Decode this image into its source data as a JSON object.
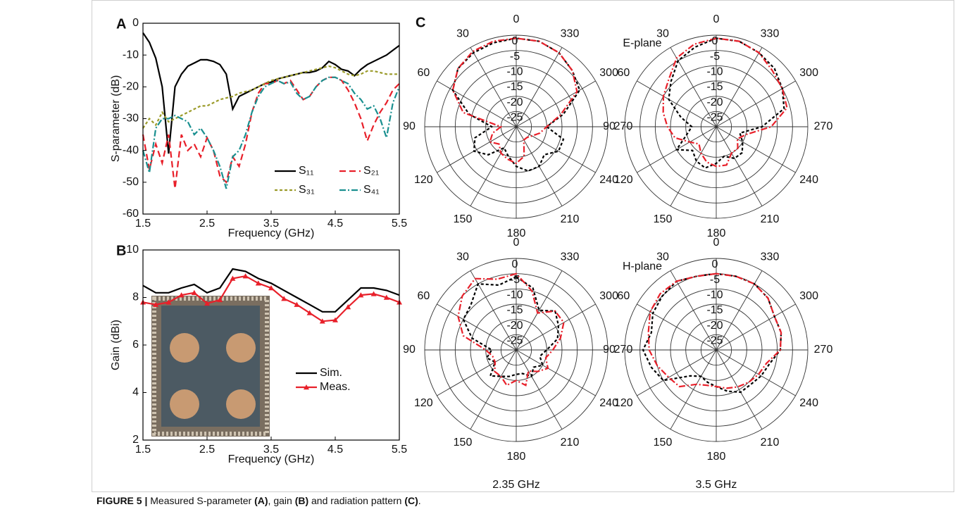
{
  "chart_data": [
    {
      "type": "line",
      "panel": "A",
      "xlabel": "Frequency (GHz)",
      "ylabel": "S-parameter (dB)",
      "xlim": [
        1.5,
        5.5
      ],
      "xticks": [
        1.5,
        2.5,
        3.5,
        4.5,
        5.5
      ],
      "ylim": [
        -60,
        0
      ],
      "yticks": [
        -60,
        -50,
        -40,
        -30,
        -20,
        -10,
        0
      ],
      "legend": "lower right",
      "legend_columns": 2,
      "x": [
        1.5,
        1.6,
        1.7,
        1.8,
        1.9,
        2.0,
        2.1,
        2.2,
        2.3,
        2.4,
        2.5,
        2.6,
        2.7,
        2.8,
        2.9,
        3.0,
        3.1,
        3.2,
        3.3,
        3.4,
        3.5,
        3.6,
        3.7,
        3.8,
        3.9,
        4.0,
        4.1,
        4.2,
        4.3,
        4.4,
        4.5,
        4.6,
        4.7,
        4.8,
        4.9,
        5.0,
        5.1,
        5.2,
        5.3,
        5.4,
        5.5
      ],
      "series": [
        {
          "name": "S₁₁",
          "color": "#000000",
          "linestyle": "solid",
          "values": [
            -3,
            -6,
            -11,
            -20,
            -41,
            -20,
            -16,
            -13.5,
            -12.5,
            -11.5,
            -11.5,
            -12,
            -13,
            -16,
            -27,
            -23,
            -22,
            -21,
            -20,
            -19,
            -18.5,
            -17.5,
            -17,
            -16.5,
            -16,
            -15.5,
            -15.5,
            -15,
            -14,
            -12,
            -13,
            -14.5,
            -15,
            -16.5,
            -14.5,
            -13,
            -12,
            -11,
            -10,
            -8.5,
            -7
          ]
        },
        {
          "name": "S₂₁",
          "color": "#e8202a",
          "linestyle": "dashed",
          "values": [
            -35,
            -46,
            -38,
            -44,
            -35,
            -52,
            -35,
            -40,
            -38,
            -42,
            -36,
            -40,
            -48,
            -50,
            -42,
            -45,
            -38,
            -28,
            -22,
            -19,
            -19,
            -18,
            -19,
            -18,
            -21,
            -24,
            -23,
            -20,
            -18,
            -17,
            -17,
            -18,
            -21,
            -25,
            -30,
            -37,
            -32,
            -28,
            -25,
            -21,
            -19
          ]
        },
        {
          "name": "S₃₁",
          "color": "#9b9b2a",
          "linestyle": "dotted",
          "values": [
            -33,
            -30,
            -32,
            -28,
            -31,
            -30,
            -29,
            -28,
            -27,
            -26,
            -26,
            -25,
            -24,
            -23.5,
            -23,
            -22,
            -21.5,
            -21,
            -20,
            -19,
            -18,
            -17.5,
            -17,
            -16.5,
            -16,
            -15.5,
            -15,
            -14.5,
            -14,
            -13.5,
            -14,
            -15,
            -16,
            -16.5,
            -16,
            -15,
            -15,
            -15.5,
            -16,
            -16,
            -16
          ]
        },
        {
          "name": "S₄₁",
          "color": "#1a9090",
          "linestyle": "dashdot",
          "values": [
            -40,
            -47,
            -33,
            -30,
            -30,
            -29,
            -30,
            -31,
            -35,
            -33,
            -36,
            -40,
            -45,
            -52,
            -42,
            -40,
            -35,
            -28,
            -23,
            -20,
            -19,
            -18,
            -19,
            -18.5,
            -22,
            -24,
            -23,
            -20,
            -18,
            -17,
            -17,
            -18,
            -19,
            -22,
            -24,
            -27,
            -26,
            -30,
            -36,
            -25,
            -20
          ]
        }
      ]
    },
    {
      "type": "line",
      "panel": "B",
      "xlabel": "Frequency (GHz)",
      "ylabel": "Gain (dBi)",
      "xlim": [
        1.5,
        5.5
      ],
      "xticks": [
        1.5,
        2.5,
        3.5,
        4.5,
        5.5
      ],
      "ylim": [
        2,
        10
      ],
      "yticks": [
        2,
        4,
        6,
        8,
        10
      ],
      "legend": "lower right",
      "legend_columns": 1,
      "x": [
        1.5,
        1.7,
        1.9,
        2.1,
        2.3,
        2.5,
        2.7,
        2.9,
        3.1,
        3.3,
        3.5,
        3.7,
        3.9,
        4.1,
        4.3,
        4.5,
        4.7,
        4.9,
        5.1,
        5.3,
        5.5
      ],
      "series": [
        {
          "name": "Sim.",
          "color": "#000000",
          "linestyle": "solid",
          "values": [
            8.5,
            8.2,
            8.2,
            8.4,
            8.55,
            8.2,
            8.4,
            9.2,
            9.1,
            8.8,
            8.6,
            8.3,
            8.0,
            7.7,
            7.4,
            7.4,
            7.9,
            8.4,
            8.4,
            8.3,
            8.1
          ]
        },
        {
          "name": "Meas.",
          "color": "#e8202a",
          "linestyle": "solid",
          "marker": "triangle",
          "values": [
            7.8,
            7.7,
            7.8,
            8.1,
            8.2,
            7.75,
            7.9,
            8.8,
            8.9,
            8.6,
            8.4,
            7.95,
            7.7,
            7.35,
            7.0,
            7.05,
            7.6,
            8.1,
            8.15,
            8.0,
            7.8
          ]
        }
      ]
    },
    {
      "type": "polar",
      "panel": "C",
      "label": "E-plane",
      "rlim": [
        -30,
        0
      ],
      "rticks": [
        -25,
        -20,
        -15,
        -10,
        -5,
        0
      ],
      "angle_ticks": [
        0,
        30,
        60,
        90,
        120,
        150,
        180,
        210,
        240,
        270,
        300,
        330
      ],
      "theta": [
        0,
        15,
        30,
        45,
        60,
        75,
        90,
        105,
        120,
        135,
        150,
        165,
        180,
        195,
        210,
        225,
        240,
        255,
        270,
        285,
        300,
        315,
        330,
        345
      ],
      "series": [
        {
          "color": "#000000",
          "linestyle": "dotted",
          "values": [
            -1,
            -1.5,
            -2,
            -3,
            -6,
            -14,
            -22,
            -16,
            -14,
            -17,
            -22,
            -20,
            -17,
            -15,
            -15,
            -17,
            -14,
            -14,
            -20,
            -14,
            -6,
            -4,
            -2,
            -1
          ]
        },
        {
          "color": "#e8202a",
          "linestyle": "dashdot",
          "values": [
            -1,
            -1,
            -1.5,
            -3,
            -6,
            -12,
            -25,
            -22,
            -20,
            -22,
            -20,
            -19,
            -18,
            -20,
            -25,
            -25,
            -24,
            -22,
            -20,
            -15,
            -7,
            -4,
            -2,
            -1
          ]
        }
      ]
    },
    {
      "type": "polar",
      "rlim": [
        -30,
        0
      ],
      "rticks": [
        -25,
        -20,
        -15,
        -10,
        -5,
        0
      ],
      "angle_ticks": [
        0,
        30,
        60,
        90,
        120,
        150,
        180,
        210,
        240,
        270,
        300,
        330
      ],
      "theta": [
        0,
        15,
        30,
        45,
        60,
        75,
        90,
        105,
        120,
        135,
        150,
        165,
        180,
        195,
        210,
        225,
        240,
        255,
        270,
        285,
        300,
        315,
        330,
        345
      ],
      "series": [
        {
          "color": "#000000",
          "linestyle": "dotted",
          "values": [
            -1,
            -3,
            -5,
            -9,
            -12,
            -18,
            -22,
            -20,
            -15,
            -19,
            -17,
            -16,
            -18,
            -20,
            -18,
            -18,
            -20,
            -22,
            -15,
            -7,
            -5,
            -3,
            -2,
            -1
          ]
        },
        {
          "color": "#e8202a",
          "linestyle": "dashdot",
          "values": [
            -1,
            -2,
            -4,
            -8,
            -10,
            -12,
            -14,
            -16,
            -20,
            -22,
            -20,
            -18,
            -17,
            -17,
            -20,
            -20,
            -22,
            -20,
            -12,
            -6,
            -5,
            -4,
            -2,
            -1
          ]
        }
      ]
    },
    {
      "type": "polar",
      "label": "H-plane",
      "xlabel": "2.35 GHz",
      "rlim": [
        -30,
        0
      ],
      "rticks": [
        -25,
        -20,
        -15,
        -10,
        -5,
        0
      ],
      "angle_ticks": [
        0,
        30,
        60,
        90,
        120,
        150,
        180,
        210,
        240,
        270,
        300,
        330
      ],
      "theta": [
        0,
        15,
        30,
        45,
        60,
        75,
        90,
        105,
        120,
        135,
        150,
        165,
        180,
        195,
        210,
        225,
        240,
        255,
        270,
        285,
        300,
        315,
        330,
        345
      ],
      "series": [
        {
          "color": "#000000",
          "linestyle": "dotted",
          "values": [
            -6,
            -8,
            -5,
            -9,
            -10,
            -15,
            -22,
            -20,
            -22,
            -18,
            -20,
            -21,
            -22,
            -22,
            -20,
            -22,
            -20,
            -22,
            -20,
            -16,
            -14,
            -12,
            -15,
            -9
          ]
        },
        {
          "color": "#e8202a",
          "linestyle": "dashdot",
          "values": [
            -5,
            -6,
            -3,
            -5,
            -8,
            -12,
            -20,
            -22,
            -22,
            -20,
            -20,
            -18,
            -20,
            -18,
            -22,
            -20,
            -18,
            -20,
            -18,
            -15,
            -12,
            -12,
            -16,
            -10
          ]
        }
      ]
    },
    {
      "type": "polar",
      "xlabel": "3.5 GHz",
      "rlim": [
        -30,
        0
      ],
      "rticks": [
        -25,
        -20,
        -15,
        -10,
        -5,
        0
      ],
      "angle_ticks": [
        0,
        30,
        60,
        90,
        120,
        150,
        180,
        210,
        240,
        270,
        300,
        330
      ],
      "theta": [
        0,
        15,
        30,
        45,
        60,
        75,
        90,
        105,
        120,
        135,
        150,
        165,
        180,
        195,
        210,
        225,
        240,
        255,
        270,
        285,
        300,
        315,
        330,
        345
      ],
      "series": [
        {
          "color": "#000000",
          "linestyle": "dotted",
          "values": [
            -5,
            -5,
            -4,
            -5,
            -6,
            -8,
            -6,
            -8,
            -10,
            -18,
            -20,
            -19,
            -18,
            -16,
            -14,
            -14,
            -13,
            -12,
            -9,
            -8,
            -8,
            -6,
            -5,
            -5
          ]
        },
        {
          "color": "#e8202a",
          "linestyle": "dashdot",
          "values": [
            -5,
            -5,
            -4,
            -4,
            -5,
            -7,
            -8,
            -10,
            -12,
            -13,
            -17,
            -18,
            -18,
            -17,
            -16,
            -15,
            -14,
            -13,
            -9,
            -8,
            -8,
            -6,
            -5,
            -5
          ]
        }
      ]
    }
  ],
  "caption": [
    {
      "text": "FIGURE 5 |",
      "bold": true
    },
    {
      "text": " Measured S-parameter ",
      "bold": false
    },
    {
      "text": "(A)",
      "bold": true
    },
    {
      "text": ", gain ",
      "bold": false
    },
    {
      "text": "(B)",
      "bold": true
    },
    {
      "text": " and radiation pattern ",
      "bold": false
    },
    {
      "text": "(C)",
      "bold": true
    },
    {
      "text": ".",
      "bold": false
    }
  ]
}
